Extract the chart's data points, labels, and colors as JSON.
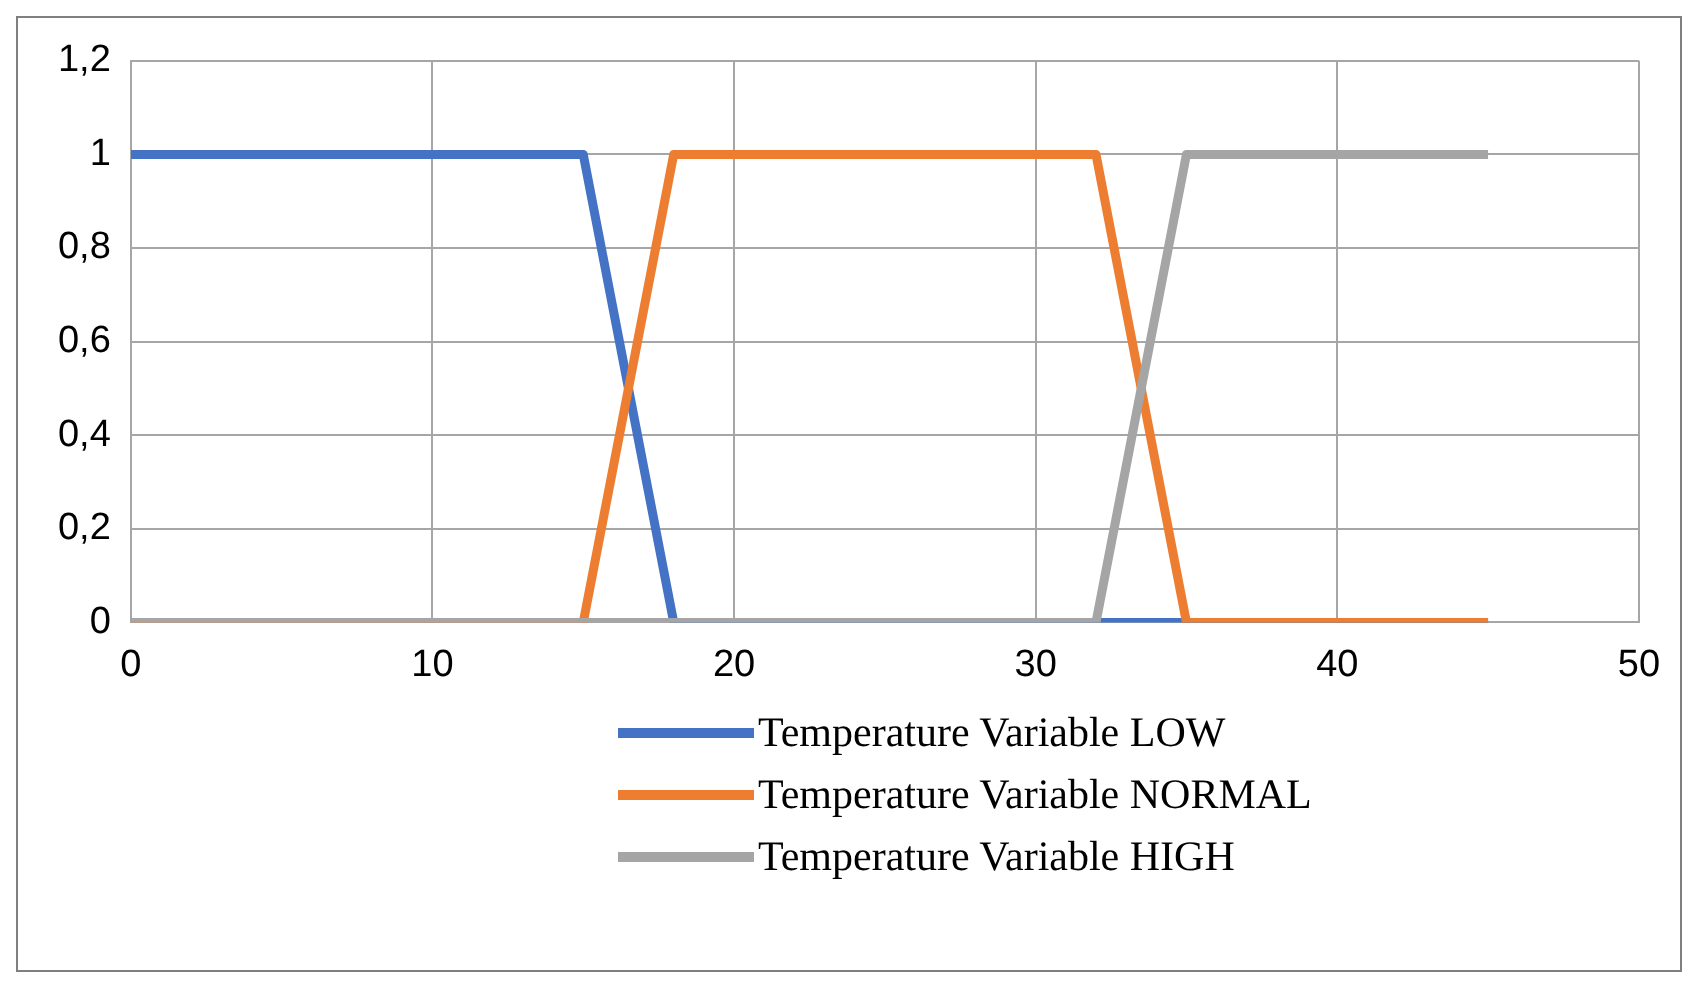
{
  "chart_data": {
    "type": "line",
    "series": [
      {
        "name": "Temperature Variable LOW",
        "color": "#4472c4",
        "x": [
          0,
          15,
          18,
          45
        ],
        "values": [
          1,
          1,
          0,
          0
        ]
      },
      {
        "name": "Temperature Variable NORMAL",
        "color": "#ed7d31",
        "x": [
          0,
          15,
          18,
          32,
          35,
          45
        ],
        "values": [
          0,
          0,
          1,
          1,
          0,
          0
        ]
      },
      {
        "name": "Temperature Variable HIGH",
        "color": "#a5a5a5",
        "x": [
          0,
          32,
          35,
          45
        ],
        "values": [
          0,
          0,
          1,
          1
        ]
      }
    ],
    "xlim": [
      0,
      50
    ],
    "xticks": [
      0,
      10,
      20,
      30,
      40,
      50
    ],
    "ylim": [
      0,
      1.2
    ],
    "yticks": [
      0,
      {
        "value": 0.2,
        "label": "0,2"
      },
      {
        "value": 0.4,
        "label": "0,4"
      },
      {
        "value": 0.6,
        "label": "0,6"
      },
      {
        "value": 0.8,
        "label": "0,8"
      },
      1,
      {
        "value": 1.2,
        "label": "1,2"
      }
    ],
    "grid": true,
    "legend": "bottom",
    "marker": "none",
    "line_style": "solid"
  }
}
